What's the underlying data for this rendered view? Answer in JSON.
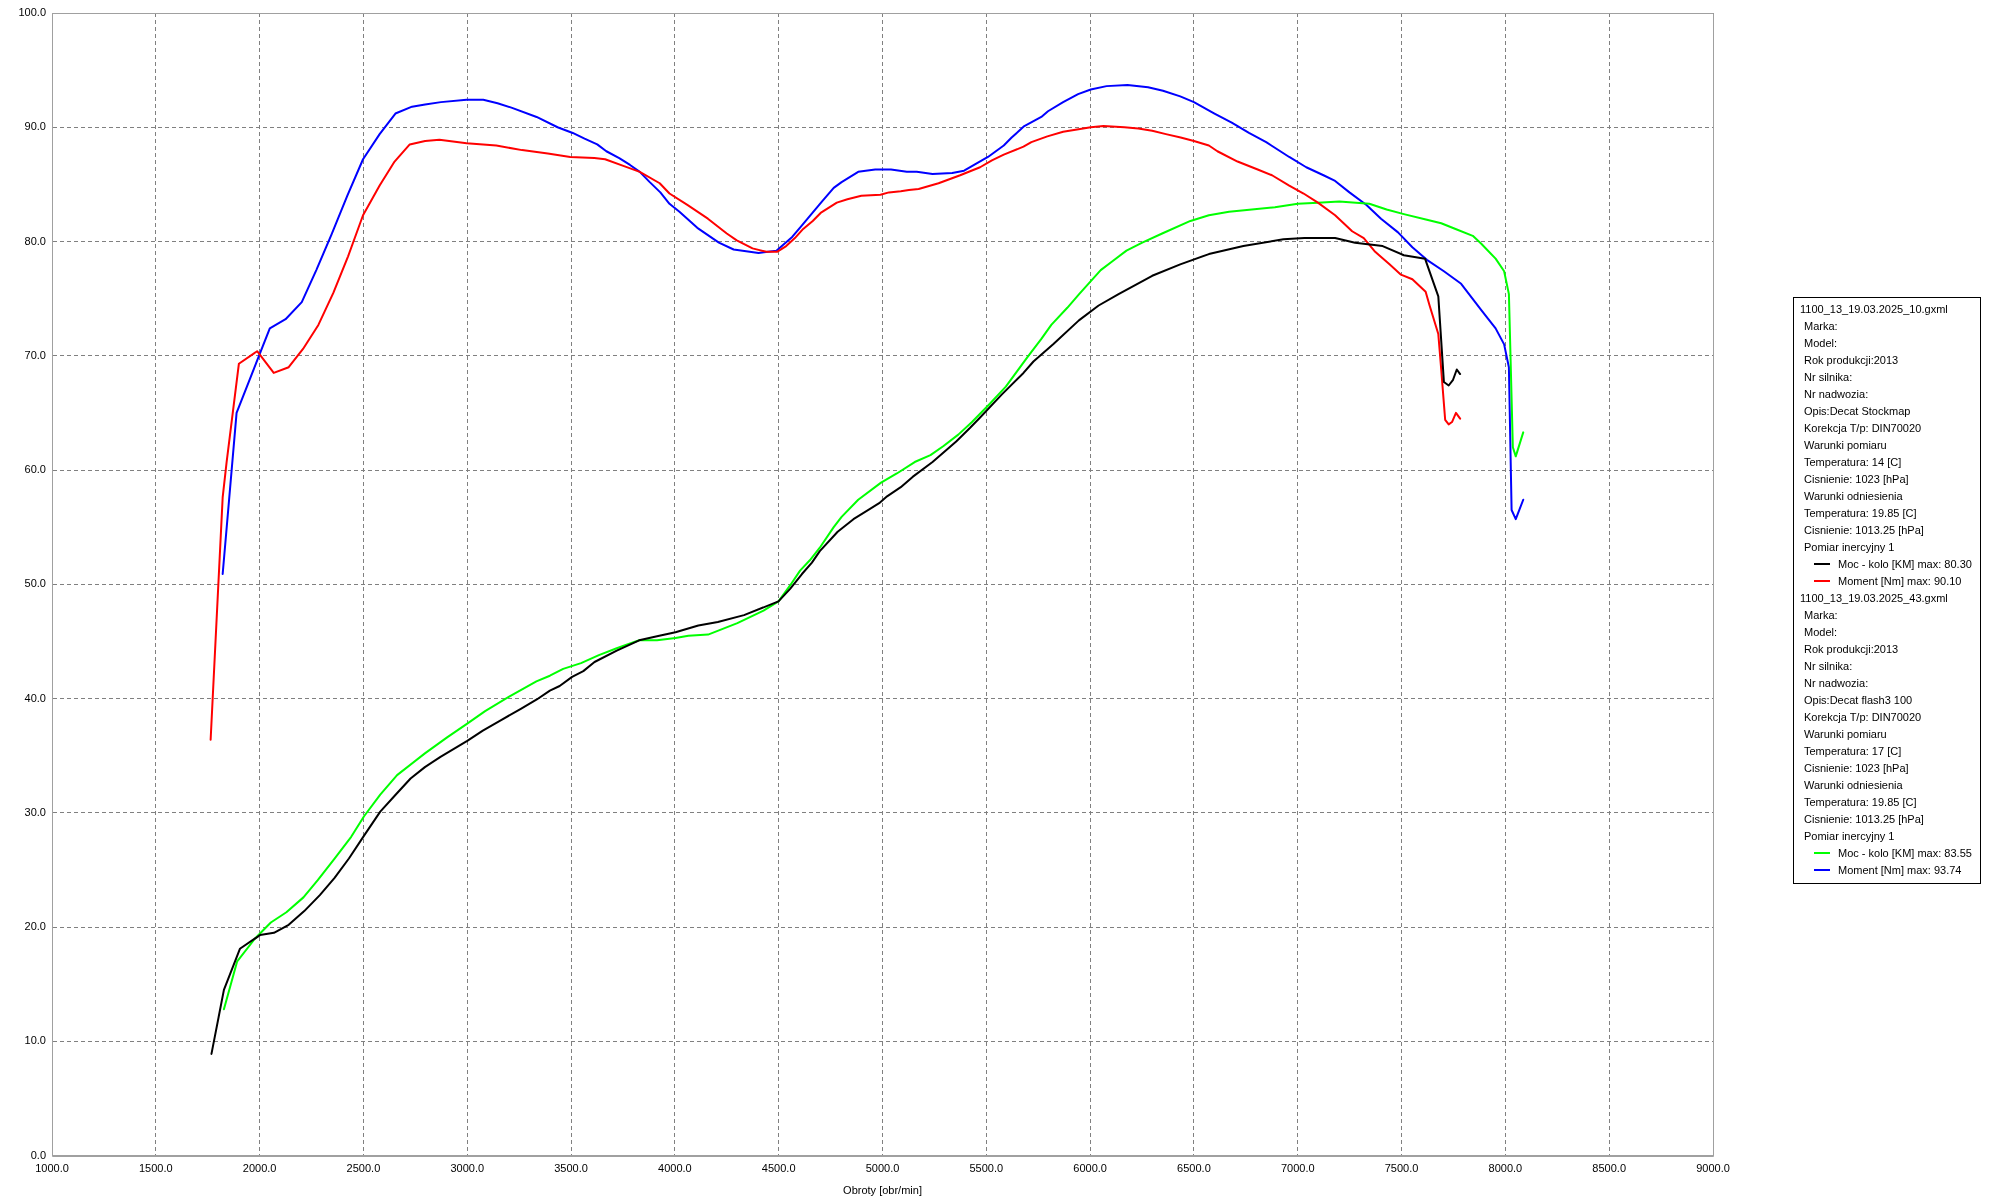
{
  "chart_data": {
    "type": "line",
    "xlabel": "Obroty [obr/min]",
    "xlim": [
      1000,
      9000
    ],
    "xticks": [
      {
        "value": 1000,
        "label": "1000.0"
      },
      {
        "value": 1500,
        "label": "1500.0"
      },
      {
        "value": 2000,
        "label": "2000.0"
      },
      {
        "value": 2500,
        "label": "2500.0"
      },
      {
        "value": 3000,
        "label": "3000.0"
      },
      {
        "value": 3500,
        "label": "3500.0"
      },
      {
        "value": 4000,
        "label": "4000.0"
      },
      {
        "value": 4500,
        "label": "4500.0"
      },
      {
        "value": 5000,
        "label": "5000.0"
      },
      {
        "value": 5500,
        "label": "5500.0"
      },
      {
        "value": 6000,
        "label": "6000.0"
      },
      {
        "value": 6500,
        "label": "6500.0"
      },
      {
        "value": 7000,
        "label": "7000.0"
      },
      {
        "value": 7500,
        "label": "7500.0"
      },
      {
        "value": 8000,
        "label": "8000.0"
      },
      {
        "value": 8500,
        "label": "8500.0"
      },
      {
        "value": 9000,
        "label": "9000.0"
      }
    ],
    "ylim": [
      0,
      100
    ],
    "yticks": [
      {
        "value": 0,
        "label": "0.0"
      },
      {
        "value": 10,
        "label": "10.0"
      },
      {
        "value": 20,
        "label": "20.0"
      },
      {
        "value": 30,
        "label": "30.0"
      },
      {
        "value": 40,
        "label": "40.0"
      },
      {
        "value": 50,
        "label": "50.0"
      },
      {
        "value": 60,
        "label": "60.0"
      },
      {
        "value": 70,
        "label": "70.0"
      },
      {
        "value": 80,
        "label": "80.0"
      },
      {
        "value": 90,
        "label": "90.0"
      },
      {
        "value": 100,
        "label": "100.0"
      }
    ],
    "grid": true,
    "legend": "right",
    "marker": "none",
    "line_style": "solid",
    "annotations": [
      "1100_13_19.03.2025_10.gxml",
      "Marka:",
      "Model:",
      "Rok produkcji:2013",
      "Nr silnika:",
      "Nr nadwozia:",
      "Opis:Decat Stockmap",
      "Korekcja T/p: DIN70020",
      "Warunki pomiaru",
      "Temperatura: 14 [C]",
      "Cisnienie: 1023 [hPa]",
      "Warunki odniesienia",
      "Temperatura: 19.85 [C]",
      "Cisnienie: 1013.25 [hPa]",
      "Pomiar inercyjny 1",
      "1100_13_19.03.2025_43.gxml",
      "Marka:",
      "Model:",
      "Rok produkcji:2013",
      "Nr silnika:",
      "Nr nadwozia:",
      "Opis:Decat flash3 100",
      "Korekcja T/p: DIN70020",
      "Warunki pomiaru",
      "Temperatura: 17 [C]",
      "Cisnienie: 1023 [hPa]",
      "Warunki odniesienia",
      "Temperatura: 19.85 [C]",
      "Cisnienie: 1013.25 [hPa]",
      "Pomiar inercyjny 1"
    ],
    "series": [
      {
        "name": "Moc - kolo [KM] max: 80.30",
        "color": "#000000",
        "x": [
          1768,
          1828,
          1905,
          2002,
          2069,
          2140,
          2215,
          2290,
          2361,
          2430,
          2503,
          2581,
          2656,
          2727,
          2796,
          2871,
          3000,
          3075,
          3161,
          3258,
          3333,
          3398,
          3445,
          3505,
          3559,
          3613,
          3720,
          3828,
          3925,
          4003,
          4113,
          4207,
          4333,
          4499,
          4555,
          4612,
          4660,
          4698,
          4784,
          4860,
          4984,
          5022,
          5088,
          5145,
          5241,
          5355,
          5422,
          5470,
          5574,
          5679,
          5727,
          5822,
          5946,
          6041,
          6137,
          6299,
          6434,
          6572,
          6738,
          6931,
          7032,
          7180,
          7276,
          7409,
          7511,
          7613,
          7677,
          7704,
          7727,
          7748,
          7766,
          7782
        ],
        "values": [
          8.9,
          14.5,
          18.1,
          19.3,
          19.5,
          20.2,
          21.4,
          22.8,
          24.3,
          26.0,
          28.0,
          30.1,
          31.6,
          33.0,
          34.0,
          34.9,
          36.3,
          37.2,
          38.1,
          39.1,
          39.9,
          40.7,
          41.1,
          41.9,
          42.4,
          43.2,
          44.2,
          45.1,
          45.5,
          45.8,
          46.4,
          46.7,
          47.3,
          48.5,
          49.6,
          50.9,
          51.9,
          52.9,
          54.6,
          55.7,
          57.1,
          57.7,
          58.5,
          59.4,
          60.7,
          62.5,
          63.7,
          64.6,
          66.6,
          68.5,
          69.5,
          71.0,
          73.1,
          74.4,
          75.4,
          77.0,
          78.0,
          78.9,
          79.6,
          80.2,
          80.3,
          80.3,
          79.9,
          79.6,
          78.8,
          78.5,
          75.2,
          67.7,
          67.4,
          67.9,
          68.8,
          68.4
        ]
      },
      {
        "name": "Moment [Nm] max: 90.10",
        "color": "#ff0000",
        "x": [
          1764,
          1822,
          1841,
          1900,
          1988,
          2068,
          2140,
          2209,
          2283,
          2355,
          2426,
          2498,
          2578,
          2650,
          2723,
          2797,
          2866,
          2997,
          3140,
          3264,
          3388,
          3496,
          3612,
          3664,
          3755,
          3831,
          3927,
          3974,
          4060,
          4159,
          4250,
          4298,
          4374,
          4441,
          4492,
          4536,
          4578,
          4618,
          4664,
          4702,
          4780,
          4831,
          4898,
          4990,
          5031,
          5088,
          5127,
          5174,
          5270,
          5374,
          5470,
          5527,
          5584,
          5679,
          5717,
          5794,
          5870,
          5937,
          6003,
          6064,
          6165,
          6232,
          6299,
          6365,
          6436,
          6500,
          6572,
          6613,
          6710,
          6807,
          6876,
          6959,
          7028,
          7097,
          7180,
          7262,
          7318,
          7373,
          7442,
          7497,
          7552,
          7616,
          7635,
          7677,
          7691,
          7710,
          7727,
          7743,
          7762,
          7782
        ],
        "values": [
          36.4,
          57.6,
          60.7,
          69.3,
          70.4,
          68.5,
          69.0,
          70.6,
          72.7,
          75.5,
          78.7,
          82.3,
          84.9,
          87.0,
          88.5,
          88.8,
          88.9,
          88.6,
          88.4,
          88.0,
          87.7,
          87.4,
          87.3,
          87.2,
          86.6,
          86.1,
          85.1,
          84.2,
          83.2,
          82.0,
          80.7,
          80.1,
          79.4,
          79.1,
          79.1,
          79.6,
          80.3,
          81.1,
          81.8,
          82.5,
          83.4,
          83.7,
          84.0,
          84.1,
          84.3,
          84.4,
          84.5,
          84.6,
          85.1,
          85.8,
          86.5,
          87.1,
          87.6,
          88.3,
          88.7,
          89.2,
          89.6,
          89.8,
          90.0,
          90.1,
          90.0,
          89.9,
          89.7,
          89.4,
          89.1,
          88.8,
          88.4,
          87.9,
          87.0,
          86.3,
          85.8,
          84.9,
          84.2,
          83.4,
          82.3,
          80.9,
          80.3,
          79.1,
          78.0,
          77.1,
          76.7,
          75.6,
          74.4,
          71.9,
          68.8,
          64.4,
          64.0,
          64.2,
          65.0,
          64.5
        ]
      },
      {
        "name": "Moc - kolo [KM] max: 83.55",
        "color": "#00ff00",
        "x": [
          1828,
          1892,
          1978,
          2054,
          2129,
          2211,
          2280,
          2361,
          2441,
          2503,
          2581,
          2662,
          2796,
          2903,
          3000,
          3086,
          3204,
          3333,
          3398,
          3462,
          3548,
          3634,
          3720,
          3828,
          3914,
          4003,
          4065,
          4160,
          4301,
          4427,
          4499,
          4555,
          4603,
          4650,
          4698,
          4765,
          4803,
          4883,
          4993,
          5069,
          5155,
          5231,
          5294,
          5365,
          5431,
          5517,
          5594,
          5699,
          5766,
          5813,
          5890,
          5947,
          6051,
          6109,
          6175,
          6251,
          6347,
          6483,
          6572,
          6669,
          6779,
          6890,
          7000,
          7097,
          7200,
          7345,
          7428,
          7511,
          7622,
          7691,
          7760,
          7843,
          7884,
          7953,
          7994,
          8017,
          8036,
          8050,
          8086
        ],
        "values": [
          12.8,
          17.0,
          19.0,
          20.4,
          21.3,
          22.6,
          24.1,
          26.0,
          27.9,
          29.7,
          31.6,
          33.3,
          35.2,
          36.6,
          37.8,
          38.9,
          40.2,
          41.5,
          42.0,
          42.6,
          43.1,
          43.8,
          44.4,
          45.1,
          45.1,
          45.3,
          45.5,
          45.6,
          46.6,
          47.7,
          48.5,
          49.9,
          51.2,
          52.1,
          53.2,
          55.0,
          55.9,
          57.4,
          58.9,
          59.7,
          60.7,
          61.3,
          62.1,
          63.1,
          64.2,
          65.8,
          67.3,
          69.9,
          71.5,
          72.7,
          74.2,
          75.4,
          77.5,
          78.3,
          79.2,
          79.9,
          80.7,
          81.8,
          82.3,
          82.6,
          82.8,
          83.0,
          83.3,
          83.4,
          83.5,
          83.3,
          82.8,
          82.4,
          81.9,
          81.6,
          81.1,
          80.5,
          79.8,
          78.5,
          77.4,
          75.4,
          62.0,
          61.2,
          63.3
        ]
      },
      {
        "name": "Moment [Nm] max: 93.74",
        "color": "#0000ff",
        "x": [
          1822,
          1889,
          2049,
          2125,
          2203,
          2273,
          2346,
          2422,
          2498,
          2578,
          2654,
          2734,
          2797,
          2873,
          2997,
          3077,
          3146,
          3216,
          3334,
          3435,
          3508,
          3565,
          3626,
          3670,
          3732,
          3784,
          3831,
          3879,
          3930,
          3974,
          4022,
          4108,
          4212,
          4283,
          4326,
          4403,
          4489,
          4565,
          4607,
          4708,
          4765,
          4803,
          4883,
          4965,
          5041,
          5117,
          5165,
          5241,
          5336,
          5393,
          5441,
          5508,
          5584,
          5622,
          5683,
          5765,
          5797,
          5870,
          5942,
          6003,
          6079,
          6180,
          6279,
          6351,
          6434,
          6500,
          6599,
          6682,
          6765,
          6848,
          6959,
          7041,
          7124,
          7180,
          7249,
          7331,
          7401,
          7483,
          7552,
          7622,
          7704,
          7787,
          7884,
          7953,
          7994,
          8017,
          8030,
          8050,
          8086
        ],
        "values": [
          50.9,
          65.0,
          72.4,
          73.2,
          74.7,
          77.5,
          80.6,
          84.0,
          87.2,
          89.4,
          91.2,
          91.8,
          92.0,
          92.2,
          92.4,
          92.4,
          92.1,
          91.7,
          90.9,
          90.0,
          89.5,
          89.0,
          88.5,
          87.9,
          87.3,
          86.7,
          86.1,
          85.2,
          84.3,
          83.3,
          82.6,
          81.2,
          79.9,
          79.3,
          79.2,
          79.0,
          79.2,
          80.4,
          81.3,
          83.5,
          84.7,
          85.2,
          86.1,
          86.3,
          86.3,
          86.1,
          86.1,
          85.9,
          86.0,
          86.2,
          86.7,
          87.4,
          88.4,
          89.1,
          90.1,
          90.9,
          91.4,
          92.2,
          92.9,
          93.3,
          93.6,
          93.7,
          93.5,
          93.2,
          92.7,
          92.2,
          91.2,
          90.4,
          89.5,
          88.7,
          87.4,
          86.5,
          85.8,
          85.3,
          84.3,
          83.2,
          82.0,
          80.8,
          79.5,
          78.4,
          77.4,
          76.3,
          74.0,
          72.4,
          71.0,
          69.0,
          56.5,
          55.7,
          57.4
        ]
      }
    ]
  }
}
